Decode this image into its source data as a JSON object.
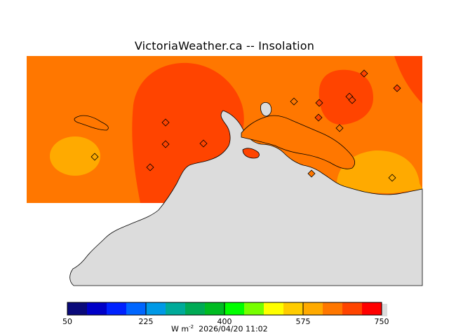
{
  "title": "VictoriaWeather.ca -- Insolation",
  "units_base": "W m",
  "units_exp": "-2",
  "timestamp": "2026/04/20 11:02",
  "colorbar": {
    "min": 50,
    "max": 750,
    "tick_labels": [
      "50",
      "225",
      "400",
      "575",
      "750"
    ],
    "tick_values": [
      50,
      225,
      400,
      575,
      750
    ],
    "colors": [
      "#0a0a7a",
      "#0000c8",
      "#0022ff",
      "#0066ff",
      "#0099e6",
      "#00aa99",
      "#00aa55",
      "#00bb22",
      "#00ff00",
      "#77ff00",
      "#ffff00",
      "#ffcc00",
      "#ffaa00",
      "#ff7700",
      "#ff4400",
      "#ff0000"
    ]
  },
  "colors": {
    "base_field": "#ff7700",
    "high_field": "#ff4400",
    "low_field": "#ffaa00",
    "land": "#dcdcdc",
    "station": "#ff4400"
  },
  "stations": [
    {
      "id": "s1"
    },
    {
      "id": "s2"
    },
    {
      "id": "s3"
    },
    {
      "id": "s4"
    },
    {
      "id": "s5"
    },
    {
      "id": "s6"
    },
    {
      "id": "s7"
    },
    {
      "id": "s8"
    },
    {
      "id": "s9"
    },
    {
      "id": "s10"
    },
    {
      "id": "s11"
    },
    {
      "id": "s12"
    },
    {
      "id": "s13"
    },
    {
      "id": "s14"
    },
    {
      "id": "s15"
    }
  ]
}
